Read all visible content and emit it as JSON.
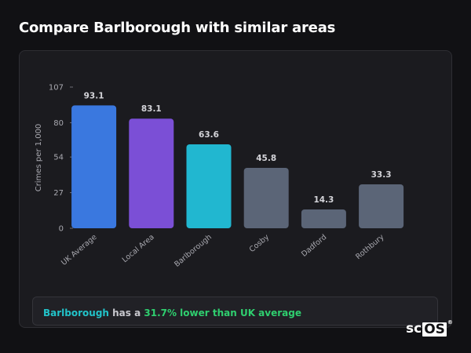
{
  "page": {
    "title": "Compare Barlborough with similar areas"
  },
  "summary": {
    "area": "Barlborough",
    "text_mid": " has a ",
    "comparison": "31.7% lower than UK average"
  },
  "brand": {
    "prefix": "sc",
    "boxed": "OS",
    "reg": "®"
  },
  "chart_data": {
    "type": "bar",
    "ylabel": "Crimes per 1,000",
    "xlabel": "",
    "ylim": [
      0,
      107
    ],
    "yticks": [
      0,
      27,
      54,
      80,
      107
    ],
    "categories": [
      "UK Average",
      "Local Area",
      "Barlborough",
      "Cosby",
      "Dadford",
      "Rothbury"
    ],
    "values": [
      93.1,
      83.1,
      63.6,
      45.8,
      14.3,
      33.3
    ],
    "value_labels": [
      "93.1",
      "83.1",
      "63.6",
      "45.8",
      "14.3",
      "33.3"
    ],
    "colors": [
      "#3a78df",
      "#7b4fd6",
      "#21b7d0",
      "#5b6577",
      "#5b6577",
      "#5b6577"
    ],
    "grid": false
  }
}
